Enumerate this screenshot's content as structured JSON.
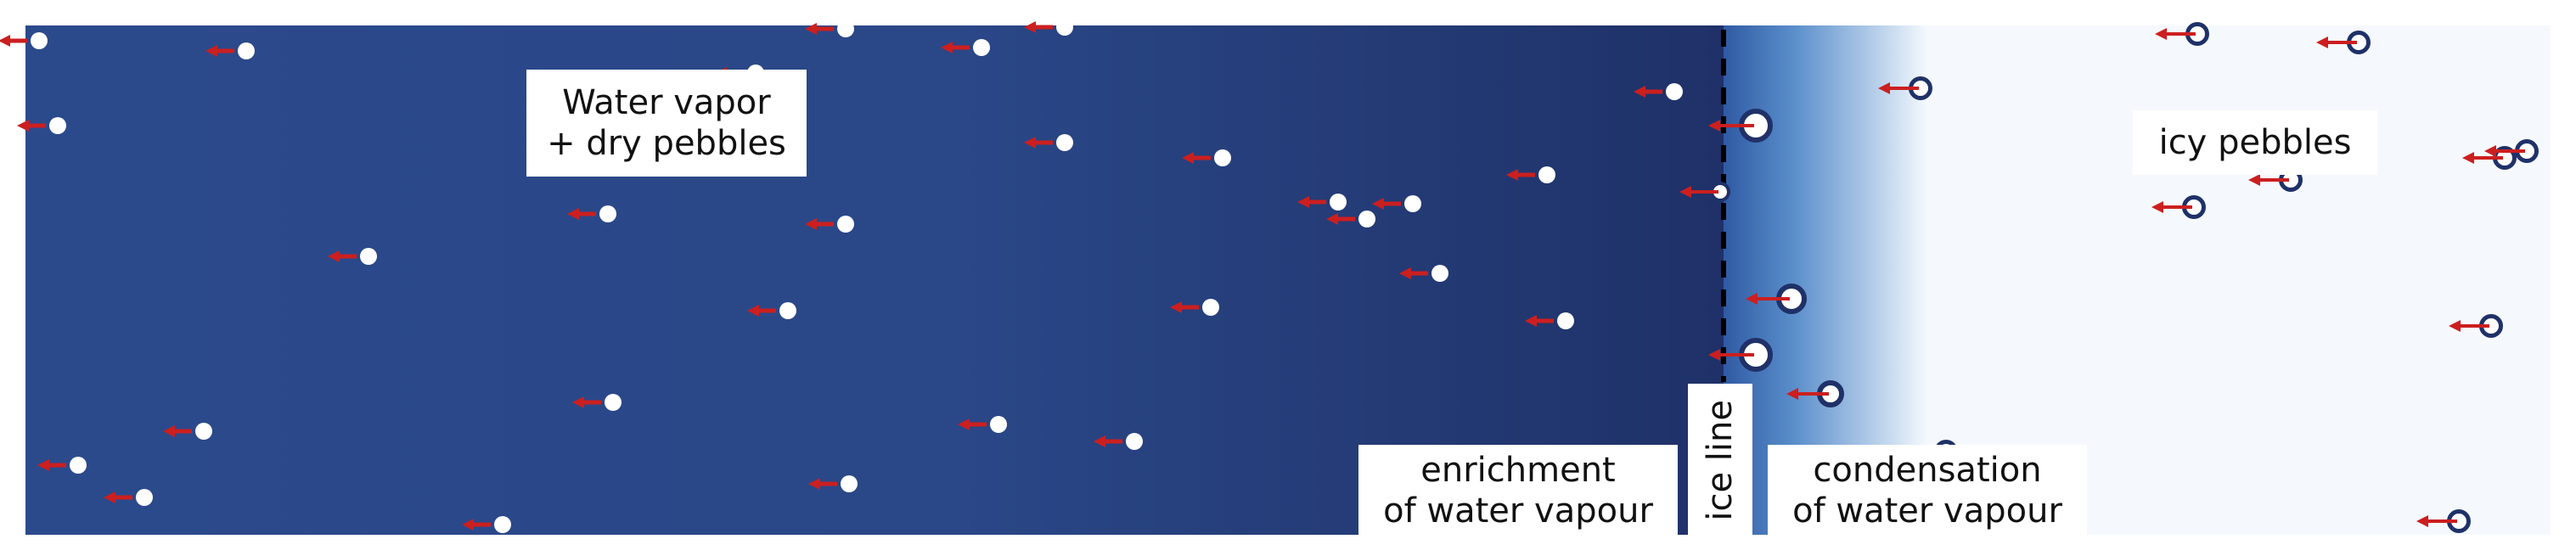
{
  "labels": {
    "vapor_line1": "Water vapor",
    "vapor_line2": "+ dry pebbles",
    "icy": "icy pebbles",
    "enrich_line1": "enrichment",
    "enrich_line2": "of water vapour",
    "iceline": "ice line",
    "cond_line1": "condensation",
    "cond_line2": "of water vapour"
  },
  "colors": {
    "vapor_left": "#2b4a8c",
    "vapor_right": "#1f3168",
    "ice_blue": "#4a7cc0",
    "ice_pale": "#f5f9fe",
    "arrow": "#cc1f1f",
    "ring": "#1f3168",
    "iceline_dash": "#000000"
  }
}
